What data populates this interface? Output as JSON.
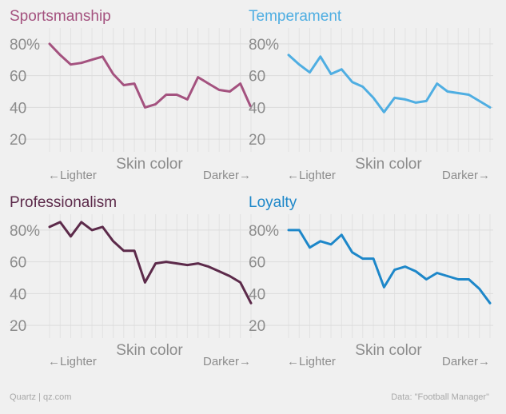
{
  "chart_data": [
    {
      "type": "line",
      "title": "Sportsmanship",
      "color": "#a4527f",
      "xlabel": "Skin color",
      "lighter_label": "←Lighter",
      "darker_label": "Darker→",
      "ylim": [
        12,
        90
      ],
      "y_ticks": [
        "20",
        "40",
        "60",
        "80%"
      ],
      "y_tick_values": [
        20,
        40,
        60,
        80
      ],
      "values": [
        80,
        73,
        67,
        68,
        70,
        72,
        61,
        54,
        55,
        40,
        42,
        48,
        48,
        45,
        59,
        55,
        51,
        50,
        55,
        40
      ]
    },
    {
      "type": "line",
      "title": "Temperament",
      "color": "#4faee2",
      "xlabel": "Skin color",
      "lighter_label": "←Lighter",
      "darker_label": "Darker→",
      "ylim": [
        12,
        90
      ],
      "y_ticks": [
        "20",
        "40",
        "60",
        "80%"
      ],
      "y_tick_values": [
        20,
        40,
        60,
        80
      ],
      "values": [
        73,
        67,
        62,
        72,
        61,
        64,
        56,
        53,
        46,
        37,
        46,
        45,
        43,
        44,
        55,
        50,
        49,
        48,
        44,
        40
      ]
    },
    {
      "type": "line",
      "title": "Professionalism",
      "color": "#5c2a4a",
      "xlabel": "Skin color",
      "lighter_label": "←Lighter",
      "darker_label": "Darker→",
      "ylim": [
        12,
        90
      ],
      "y_ticks": [
        "20",
        "40",
        "60",
        "80%"
      ],
      "y_tick_values": [
        20,
        40,
        60,
        80
      ],
      "values": [
        82,
        85,
        76,
        85,
        80,
        82,
        73,
        67,
        67,
        47,
        59,
        60,
        59,
        58,
        59,
        57,
        54,
        51,
        47,
        34
      ]
    },
    {
      "type": "line",
      "title": "Loyalty",
      "color": "#1d87c9",
      "xlabel": "Skin color",
      "lighter_label": "←Lighter",
      "darker_label": "Darker→",
      "ylim": [
        12,
        90
      ],
      "y_ticks": [
        "20",
        "40",
        "60",
        "80%"
      ],
      "y_tick_values": [
        20,
        40,
        60,
        80
      ],
      "values": [
        80,
        80,
        69,
        73,
        71,
        77,
        66,
        62,
        62,
        44,
        55,
        57,
        54,
        49,
        53,
        51,
        49,
        49,
        43,
        34
      ]
    }
  ],
  "footer": {
    "source_left": "Quartz | qz.com",
    "source_right": "Data: \"Football Manager\""
  }
}
